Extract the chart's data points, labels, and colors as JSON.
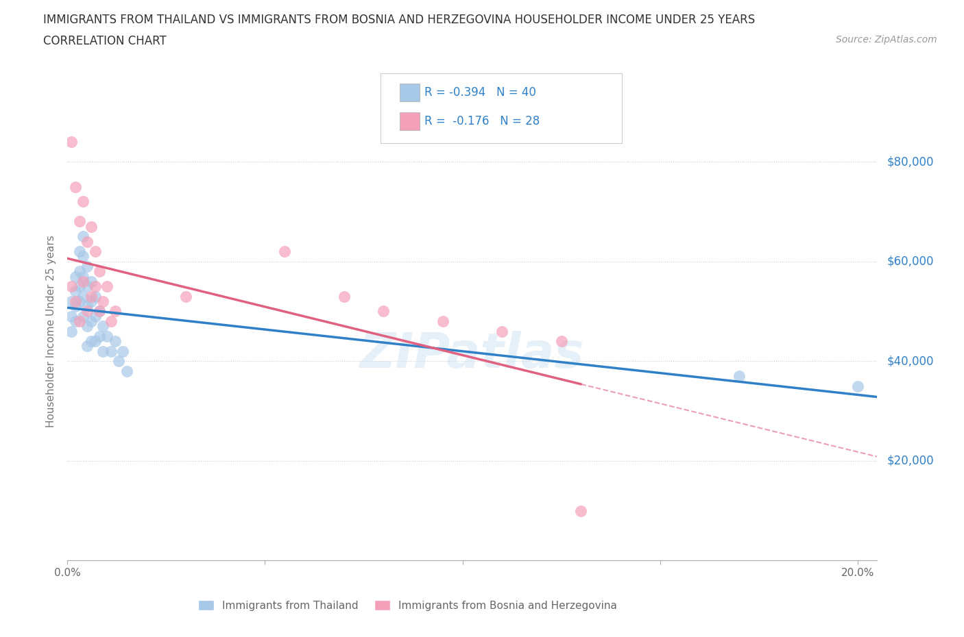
{
  "title_line1": "IMMIGRANTS FROM THAILAND VS IMMIGRANTS FROM BOSNIA AND HERZEGOVINA HOUSEHOLDER INCOME UNDER 25 YEARS",
  "title_line2": "CORRELATION CHART",
  "source_text": "Source: ZipAtlas.com",
  "ylabel": "Householder Income Under 25 years",
  "xlim": [
    0.0,
    0.205
  ],
  "ylim": [
    0,
    92000
  ],
  "ytick_vals": [
    20000,
    40000,
    60000,
    80000
  ],
  "ytick_labels": [
    "$20,000",
    "$40,000",
    "$60,000",
    "$80,000"
  ],
  "xtick_vals": [
    0.0,
    0.05,
    0.1,
    0.15,
    0.2
  ],
  "xtick_labels": [
    "0.0%",
    "",
    "",
    "",
    "20.0%"
  ],
  "color_blue": "#a8c8e8",
  "color_pink": "#f4a0b8",
  "line_color_blue": "#3080c8",
  "line_color_pink": "#e06080",
  "watermark": "ZIPatlas",
  "legend_label_blue": "Immigrants from Thailand",
  "legend_label_pink": "Immigrants from Bosnia and Herzegovina",
  "thailand_x": [
    0.001,
    0.001,
    0.001,
    0.002,
    0.002,
    0.002,
    0.002,
    0.003,
    0.003,
    0.003,
    0.003,
    0.004,
    0.004,
    0.004,
    0.004,
    0.004,
    0.005,
    0.005,
    0.005,
    0.005,
    0.005,
    0.006,
    0.006,
    0.006,
    0.006,
    0.007,
    0.007,
    0.007,
    0.008,
    0.008,
    0.009,
    0.009,
    0.01,
    0.011,
    0.012,
    0.013,
    0.014,
    0.015,
    0.17,
    0.2
  ],
  "thailand_y": [
    52000,
    49000,
    46000,
    57000,
    54000,
    51000,
    48000,
    62000,
    58000,
    55000,
    52000,
    65000,
    61000,
    57000,
    53000,
    49000,
    59000,
    55000,
    51000,
    47000,
    43000,
    56000,
    52000,
    48000,
    44000,
    53000,
    49000,
    44000,
    50000,
    45000,
    47000,
    42000,
    45000,
    42000,
    44000,
    40000,
    42000,
    38000,
    37000,
    35000
  ],
  "bosnia_x": [
    0.001,
    0.001,
    0.002,
    0.002,
    0.003,
    0.003,
    0.004,
    0.004,
    0.005,
    0.005,
    0.006,
    0.006,
    0.007,
    0.007,
    0.008,
    0.008,
    0.009,
    0.01,
    0.011,
    0.012,
    0.03,
    0.055,
    0.07,
    0.08,
    0.095,
    0.11,
    0.125,
    0.13
  ],
  "bosnia_y": [
    84000,
    55000,
    75000,
    52000,
    68000,
    48000,
    72000,
    56000,
    64000,
    50000,
    67000,
    53000,
    62000,
    55000,
    58000,
    50000,
    52000,
    55000,
    48000,
    50000,
    53000,
    62000,
    53000,
    50000,
    48000,
    46000,
    44000,
    10000
  ]
}
